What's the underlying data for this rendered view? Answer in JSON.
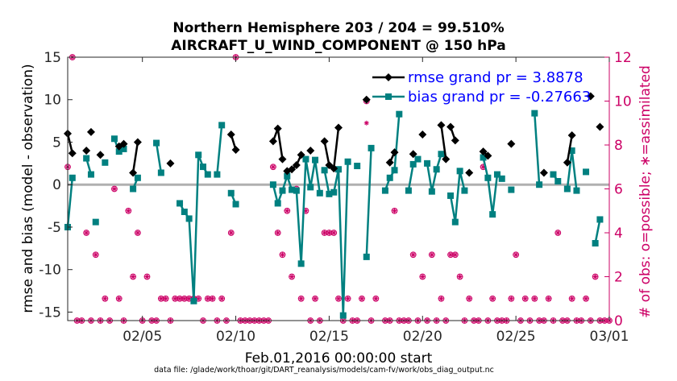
{
  "chart_data": {
    "type": "line",
    "title_line1": "Northern Hemisphere 203 / 204 = 99.510%",
    "title_line2": "AIRCRAFT_U_WIND_COMPONENT @ 150 hPa",
    "xlabel": "Feb.01,2016 00:00:00 start",
    "ylabel_left": "rmse and bias (model - observation)",
    "ylabel_right": "# of obs: o=possible; ∗=assimilated",
    "footnote": "data file: /glade/work/thoar/git/DART_reanalysis/models/cam-fv/work/obs_diag_output.nc",
    "xlim": [
      1,
      30
    ],
    "ylim_left": [
      -16,
      15
    ],
    "ylim_right": [
      0,
      12
    ],
    "xticks": [
      {
        "v": 5,
        "label": "02/05"
      },
      {
        "v": 10,
        "label": "02/10"
      },
      {
        "v": 15,
        "label": "02/15"
      },
      {
        "v": 20,
        "label": "02/20"
      },
      {
        "v": 25,
        "label": "02/25"
      },
      {
        "v": 30,
        "label": "03/01"
      }
    ],
    "yticks_left": [
      {
        "v": 15,
        "label": "15"
      },
      {
        "v": 10,
        "label": "10"
      },
      {
        "v": 5,
        "label": "5"
      },
      {
        "v": 0,
        "label": "0"
      },
      {
        "v": -5,
        "label": "-5"
      },
      {
        "v": -10,
        "label": "-10"
      },
      {
        "v": -15,
        "label": "-15"
      }
    ],
    "yticks_right": [
      {
        "v": 0,
        "label": "0"
      },
      {
        "v": 2,
        "label": "2"
      },
      {
        "v": 4,
        "label": "4"
      },
      {
        "v": 6,
        "label": "6"
      },
      {
        "v": 8,
        "label": "8"
      },
      {
        "v": 10,
        "label": "10"
      },
      {
        "v": 12,
        "label": "12"
      }
    ],
    "legend": [
      "rmse grand pr = 3.8878",
      "bias grand pr = -0.27663"
    ],
    "colors": {
      "rmse": "#000000",
      "bias": "#008080",
      "obs": "#cc0066",
      "zero_line": "#b0b0b0",
      "legend_text": "#0000ff"
    },
    "rmse_segments": [
      [
        [
          1.0,
          6.0
        ],
        [
          1.25,
          3.7
        ]
      ],
      [
        [
          2.0,
          4.0
        ]
      ],
      [
        [
          2.25,
          6.2
        ]
      ],
      [
        [
          2.75,
          3.5
        ]
      ],
      [
        [
          3.75,
          4.5
        ],
        [
          4.0,
          4.8
        ]
      ],
      [
        [
          4.5,
          1.4
        ],
        [
          4.75,
          5.0
        ]
      ],
      [
        [
          6.5,
          2.5
        ]
      ],
      [
        [
          9.75,
          5.9
        ],
        [
          10.0,
          4.1
        ]
      ],
      [
        [
          12.0,
          5.1
        ],
        [
          12.25,
          6.6
        ],
        [
          12.5,
          3.0
        ]
      ],
      [
        [
          12.75,
          1.6
        ],
        [
          13.0,
          1.8
        ],
        [
          13.25,
          2.3
        ],
        [
          13.5,
          3.5
        ]
      ],
      [
        [
          14.0,
          4.0
        ]
      ],
      [
        [
          14.75,
          5.1
        ],
        [
          15.0,
          2.3
        ],
        [
          15.25,
          1.9
        ],
        [
          15.5,
          6.7
        ]
      ],
      [
        [
          17.0,
          10.0
        ]
      ],
      [
        [
          18.25,
          2.6
        ],
        [
          18.5,
          3.8
        ]
      ],
      [
        [
          19.5,
          3.6
        ]
      ],
      [
        [
          20.0,
          5.9
        ]
      ],
      [
        [
          21.0,
          7.0
        ],
        [
          21.25,
          3.0
        ]
      ],
      [
        [
          21.5,
          6.8
        ],
        [
          21.75,
          5.2
        ]
      ],
      [
        [
          22.5,
          1.4
        ]
      ],
      [
        [
          23.25,
          3.9
        ],
        [
          23.5,
          3.4
        ]
      ],
      [
        [
          24.75,
          4.8
        ]
      ],
      [
        [
          26.5,
          1.4
        ]
      ],
      [
        [
          27.75,
          2.6
        ],
        [
          28.0,
          5.8
        ]
      ],
      [
        [
          29.0,
          10.4
        ]
      ],
      [
        [
          29.5,
          6.8
        ]
      ]
    ],
    "bias_segments": [
      [
        [
          1.0,
          -5.0
        ],
        [
          1.25,
          0.8
        ]
      ],
      [
        [
          2.0,
          3.1
        ],
        [
          2.25,
          1.2
        ]
      ],
      [
        [
          2.5,
          -4.4
        ]
      ],
      [
        [
          3.0,
          2.6
        ]
      ],
      [
        [
          3.5,
          5.4
        ],
        [
          3.75,
          3.9
        ],
        [
          4.0,
          4.2
        ]
      ],
      [
        [
          4.5,
          -0.5
        ],
        [
          4.75,
          0.8
        ]
      ],
      [
        [
          5.75,
          4.9
        ],
        [
          6.0,
          1.4
        ]
      ],
      [
        [
          7.0,
          -2.2
        ],
        [
          7.25,
          -3.2
        ],
        [
          7.5,
          -4.0
        ],
        [
          7.75,
          -13.7
        ],
        [
          8.0,
          3.5
        ],
        [
          8.25,
          2.1
        ],
        [
          8.5,
          1.2
        ]
      ],
      [
        [
          9.0,
          1.2
        ],
        [
          9.25,
          7.0
        ]
      ],
      [
        [
          9.75,
          -1.0
        ],
        [
          10.0,
          -2.3
        ]
      ],
      [
        [
          12.0,
          0.0
        ],
        [
          12.25,
          -2.2
        ],
        [
          12.5,
          -0.7
        ],
        [
          12.75,
          1.0
        ],
        [
          13.0,
          -0.6
        ],
        [
          13.25,
          -0.7
        ],
        [
          13.5,
          -9.3
        ],
        [
          13.75,
          3.0
        ],
        [
          14.0,
          -0.3
        ],
        [
          14.25,
          2.9
        ],
        [
          14.5,
          -1.0
        ]
      ],
      [
        [
          14.75,
          1.7
        ],
        [
          15.0,
          -1.1
        ],
        [
          15.25,
          -0.9
        ],
        [
          15.5,
          1.8
        ],
        [
          15.75,
          -15.4
        ],
        [
          16.0,
          2.7
        ]
      ],
      [
        [
          16.5,
          2.2
        ]
      ],
      [
        [
          17.0,
          -8.5
        ],
        [
          17.25,
          4.3
        ]
      ],
      [
        [
          18.0,
          -0.7
        ],
        [
          18.25,
          0.8
        ],
        [
          18.5,
          1.7
        ],
        [
          18.75,
          8.3
        ]
      ],
      [
        [
          19.25,
          -0.7
        ],
        [
          19.5,
          2.4
        ],
        [
          19.75,
          3.0
        ]
      ],
      [
        [
          20.25,
          2.5
        ],
        [
          20.5,
          -0.8
        ],
        [
          20.75,
          1.8
        ],
        [
          21.0,
          3.6
        ]
      ],
      [
        [
          21.5,
          -1.3
        ],
        [
          21.75,
          -4.4
        ],
        [
          22.0,
          1.6
        ],
        [
          22.25,
          -0.7
        ]
      ],
      [
        [
          23.25,
          3.2
        ],
        [
          23.5,
          0.8
        ],
        [
          23.75,
          -3.5
        ],
        [
          24.0,
          1.2
        ],
        [
          24.25,
          0.7
        ]
      ],
      [
        [
          24.75,
          -0.6
        ]
      ],
      [
        [
          26.0,
          8.4
        ],
        [
          26.25,
          0.0
        ]
      ],
      [
        [
          27.0,
          1.2
        ],
        [
          27.25,
          0.4
        ]
      ],
      [
        [
          27.75,
          -0.5
        ],
        [
          28.0,
          4.0
        ],
        [
          28.25,
          -0.7
        ]
      ],
      [
        [
          28.75,
          1.5
        ]
      ],
      [
        [
          29.25,
          -6.9
        ],
        [
          29.5,
          -4.1
        ]
      ]
    ],
    "obs_possible": [
      [
        1.0,
        7.0
      ],
      [
        1.25,
        12.0
      ],
      [
        1.5,
        0.0
      ],
      [
        1.75,
        0.0
      ],
      [
        2.0,
        4.0
      ],
      [
        2.25,
        0.0
      ],
      [
        2.5,
        3.0
      ],
      [
        2.75,
        0.0
      ],
      [
        3.0,
        1.0
      ],
      [
        3.25,
        0.0
      ],
      [
        3.5,
        6.0
      ],
      [
        3.75,
        1.0
      ],
      [
        4.0,
        0.0
      ],
      [
        4.25,
        5.0
      ],
      [
        4.5,
        2.0
      ],
      [
        4.75,
        4.0
      ],
      [
        5.0,
        0.0
      ],
      [
        5.25,
        2.0
      ],
      [
        5.5,
        0.0
      ],
      [
        5.75,
        0.0
      ],
      [
        6.0,
        1.0
      ],
      [
        6.25,
        1.0
      ],
      [
        6.5,
        0.0
      ],
      [
        6.75,
        1.0
      ],
      [
        7.0,
        1.0
      ],
      [
        7.25,
        1.0
      ],
      [
        7.5,
        1.0
      ],
      [
        7.75,
        1.0
      ],
      [
        8.0,
        1.0
      ],
      [
        8.25,
        0.0
      ],
      [
        8.5,
        1.0
      ],
      [
        8.75,
        1.0
      ],
      [
        9.0,
        0.0
      ],
      [
        9.25,
        1.0
      ],
      [
        9.5,
        0.0
      ],
      [
        9.75,
        4.0
      ],
      [
        10.0,
        12.0
      ],
      [
        10.25,
        0.0
      ],
      [
        10.5,
        0.0
      ],
      [
        10.75,
        0.0
      ],
      [
        11.0,
        0.0
      ],
      [
        11.25,
        0.0
      ],
      [
        11.5,
        0.0
      ],
      [
        11.75,
        0.0
      ],
      [
        12.0,
        7.0
      ],
      [
        12.25,
        4.0
      ],
      [
        12.5,
        3.0
      ],
      [
        12.75,
        5.0
      ],
      [
        13.0,
        2.0
      ],
      [
        13.25,
        6.0
      ],
      [
        13.5,
        1.0
      ],
      [
        13.75,
        5.0
      ],
      [
        14.0,
        0.0
      ],
      [
        14.25,
        1.0
      ],
      [
        14.5,
        0.0
      ],
      [
        14.75,
        4.0
      ],
      [
        15.0,
        4.0
      ],
      [
        15.25,
        4.0
      ],
      [
        15.5,
        1.0
      ],
      [
        15.75,
        0.0
      ],
      [
        16.0,
        1.0
      ],
      [
        16.25,
        0.0
      ],
      [
        16.5,
        0.0
      ],
      [
        16.75,
        1.0
      ],
      [
        17.0,
        10.0
      ],
      [
        17.25,
        0.0
      ],
      [
        17.5,
        1.0
      ],
      [
        18.0,
        0.0
      ],
      [
        18.25,
        0.0
      ],
      [
        18.5,
        5.0
      ],
      [
        18.75,
        0.0
      ],
      [
        19.0,
        0.0
      ],
      [
        19.25,
        0.0
      ],
      [
        19.5,
        3.0
      ],
      [
        19.75,
        0.0
      ],
      [
        20.0,
        2.0
      ],
      [
        20.25,
        0.0
      ],
      [
        20.5,
        3.0
      ],
      [
        20.75,
        0.0
      ],
      [
        21.0,
        1.0
      ],
      [
        21.25,
        0.0
      ],
      [
        21.5,
        3.0
      ],
      [
        21.75,
        3.0
      ],
      [
        22.0,
        2.0
      ],
      [
        22.25,
        0.0
      ],
      [
        22.5,
        1.0
      ],
      [
        22.75,
        0.0
      ],
      [
        23.0,
        0.0
      ],
      [
        23.25,
        7.0
      ],
      [
        23.5,
        0.0
      ],
      [
        23.75,
        1.0
      ],
      [
        24.0,
        0.0
      ],
      [
        24.25,
        0.0
      ],
      [
        24.5,
        0.0
      ],
      [
        24.75,
        1.0
      ],
      [
        25.0,
        3.0
      ],
      [
        25.25,
        0.0
      ],
      [
        25.5,
        1.0
      ],
      [
        25.75,
        0.0
      ],
      [
        26.0,
        1.0
      ],
      [
        26.25,
        0.0
      ],
      [
        26.5,
        0.0
      ],
      [
        26.75,
        1.0
      ],
      [
        27.0,
        0.0
      ],
      [
        27.25,
        4.0
      ],
      [
        27.5,
        0.0
      ],
      [
        27.75,
        0.0
      ],
      [
        28.0,
        1.0
      ],
      [
        28.25,
        0.0
      ],
      [
        28.5,
        0.0
      ],
      [
        28.75,
        1.0
      ],
      [
        29.0,
        0.0
      ],
      [
        29.25,
        2.0
      ],
      [
        29.5,
        0.0
      ],
      [
        29.75,
        0.0
      ],
      [
        30.0,
        0.0
      ]
    ],
    "obs_assimilated": [
      [
        1.0,
        7.0
      ],
      [
        1.25,
        12.0
      ],
      [
        1.5,
        0.0
      ],
      [
        1.75,
        0.0
      ],
      [
        2.0,
        4.0
      ],
      [
        2.25,
        0.0
      ],
      [
        2.5,
        3.0
      ],
      [
        2.75,
        0.0
      ],
      [
        3.0,
        1.0
      ],
      [
        3.25,
        0.0
      ],
      [
        3.5,
        6.0
      ],
      [
        3.75,
        1.0
      ],
      [
        4.0,
        0.0
      ],
      [
        4.25,
        5.0
      ],
      [
        4.5,
        2.0
      ],
      [
        4.75,
        4.0
      ],
      [
        5.0,
        0.0
      ],
      [
        5.25,
        2.0
      ],
      [
        5.5,
        0.0
      ],
      [
        5.75,
        0.0
      ],
      [
        6.0,
        1.0
      ],
      [
        6.25,
        1.0
      ],
      [
        6.5,
        0.0
      ],
      [
        6.75,
        1.0
      ],
      [
        7.0,
        1.0
      ],
      [
        7.25,
        1.0
      ],
      [
        7.5,
        1.0
      ],
      [
        7.75,
        1.0
      ],
      [
        8.0,
        1.0
      ],
      [
        8.25,
        0.0
      ],
      [
        8.5,
        1.0
      ],
      [
        8.75,
        1.0
      ],
      [
        9.0,
        0.0
      ],
      [
        9.25,
        1.0
      ],
      [
        9.5,
        0.0
      ],
      [
        9.75,
        4.0
      ],
      [
        10.0,
        12.0
      ],
      [
        10.25,
        0.0
      ],
      [
        10.5,
        0.0
      ],
      [
        10.75,
        0.0
      ],
      [
        11.0,
        0.0
      ],
      [
        11.25,
        0.0
      ],
      [
        11.5,
        0.0
      ],
      [
        11.75,
        0.0
      ],
      [
        12.0,
        7.0
      ],
      [
        12.25,
        4.0
      ],
      [
        12.5,
        3.0
      ],
      [
        12.75,
        5.0
      ],
      [
        13.0,
        2.0
      ],
      [
        13.25,
        6.0
      ],
      [
        13.5,
        1.0
      ],
      [
        13.75,
        5.0
      ],
      [
        14.0,
        0.0
      ],
      [
        14.25,
        1.0
      ],
      [
        14.5,
        0.0
      ],
      [
        14.75,
        4.0
      ],
      [
        15.0,
        4.0
      ],
      [
        15.25,
        4.0
      ],
      [
        15.5,
        1.0
      ],
      [
        15.75,
        0.0
      ],
      [
        16.0,
        1.0
      ],
      [
        16.25,
        0.0
      ],
      [
        16.5,
        0.0
      ],
      [
        16.75,
        1.0
      ],
      [
        17.0,
        9.0
      ],
      [
        17.25,
        0.0
      ],
      [
        17.5,
        1.0
      ],
      [
        18.0,
        0.0
      ],
      [
        18.25,
        0.0
      ],
      [
        18.5,
        5.0
      ],
      [
        18.75,
        0.0
      ],
      [
        19.0,
        0.0
      ],
      [
        19.25,
        0.0
      ],
      [
        19.5,
        3.0
      ],
      [
        19.75,
        0.0
      ],
      [
        20.0,
        2.0
      ],
      [
        20.25,
        0.0
      ],
      [
        20.5,
        3.0
      ],
      [
        20.75,
        0.0
      ],
      [
        21.0,
        1.0
      ],
      [
        21.25,
        0.0
      ],
      [
        21.5,
        3.0
      ],
      [
        21.75,
        3.0
      ],
      [
        22.0,
        2.0
      ],
      [
        22.25,
        0.0
      ],
      [
        22.5,
        1.0
      ],
      [
        22.75,
        0.0
      ],
      [
        23.0,
        0.0
      ],
      [
        23.25,
        7.0
      ],
      [
        23.5,
        0.0
      ],
      [
        23.75,
        1.0
      ],
      [
        24.0,
        0.0
      ],
      [
        24.25,
        0.0
      ],
      [
        24.5,
        0.0
      ],
      [
        24.75,
        1.0
      ],
      [
        25.0,
        3.0
      ],
      [
        25.25,
        0.0
      ],
      [
        25.5,
        1.0
      ],
      [
        25.75,
        0.0
      ],
      [
        26.0,
        1.0
      ],
      [
        26.25,
        0.0
      ],
      [
        26.5,
        0.0
      ],
      [
        26.75,
        1.0
      ],
      [
        27.0,
        0.0
      ],
      [
        27.25,
        4.0
      ],
      [
        27.5,
        0.0
      ],
      [
        27.75,
        0.0
      ],
      [
        28.0,
        1.0
      ],
      [
        28.25,
        0.0
      ],
      [
        28.5,
        0.0
      ],
      [
        28.75,
        1.0
      ],
      [
        29.0,
        0.0
      ],
      [
        29.25,
        2.0
      ],
      [
        29.5,
        0.0
      ],
      [
        29.75,
        0.0
      ],
      [
        30.0,
        0.0
      ]
    ]
  }
}
